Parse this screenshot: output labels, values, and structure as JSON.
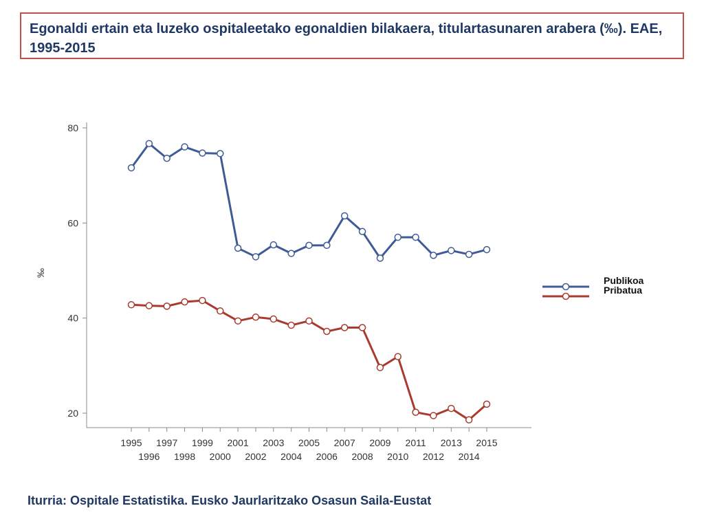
{
  "header": {
    "title": "Egonaldi ertain eta luzeko ospitaleetako egonaldien bilakaera, titulartasunaren arabera (‰). EAE, 1995-2015"
  },
  "footer": {
    "source": "Iturria: Ospitale Estatistika. Eusko Jaurlaritzako Osasun Saila-Eustat"
  },
  "chart_data": {
    "type": "line",
    "title": "Egonaldi ertain eta luzeko ospitaleetako egonaldien bilakaera, titulartasunaren arabera (‰). EAE, 1995-2015",
    "xlabel": "",
    "ylabel": "‰",
    "categories": [
      "1995",
      "1996",
      "1997",
      "1998",
      "1999",
      "2000",
      "2001",
      "2002",
      "2003",
      "2004",
      "2005",
      "2006",
      "2007",
      "2008",
      "2009",
      "2010",
      "2011",
      "2012",
      "2013",
      "2014",
      "2015"
    ],
    "yticks": [
      20,
      40,
      60,
      80
    ],
    "ylim": [
      17.5,
      81
    ],
    "series": [
      {
        "name": "Publikoa",
        "color": "#3f5b96",
        "values": [
          71.6,
          76.7,
          73.6,
          76.0,
          74.7,
          74.6,
          54.7,
          52.9,
          55.4,
          53.6,
          55.3,
          55.3,
          61.5,
          58.2,
          52.6,
          57.0,
          57.0,
          53.2,
          54.2,
          53.4,
          54.4
        ]
      },
      {
        "name": "Pribatua",
        "color": "#a93a2e",
        "values": [
          42.8,
          42.6,
          42.5,
          43.4,
          43.7,
          41.5,
          39.4,
          40.2,
          39.8,
          38.5,
          39.4,
          37.2,
          38.0,
          38.0,
          29.6,
          31.9,
          20.2,
          19.5,
          21.0,
          18.6,
          21.9
        ]
      }
    ],
    "legend": [
      "Publikoa",
      "Pribatua"
    ],
    "legend_position": "right",
    "grid": false
  }
}
